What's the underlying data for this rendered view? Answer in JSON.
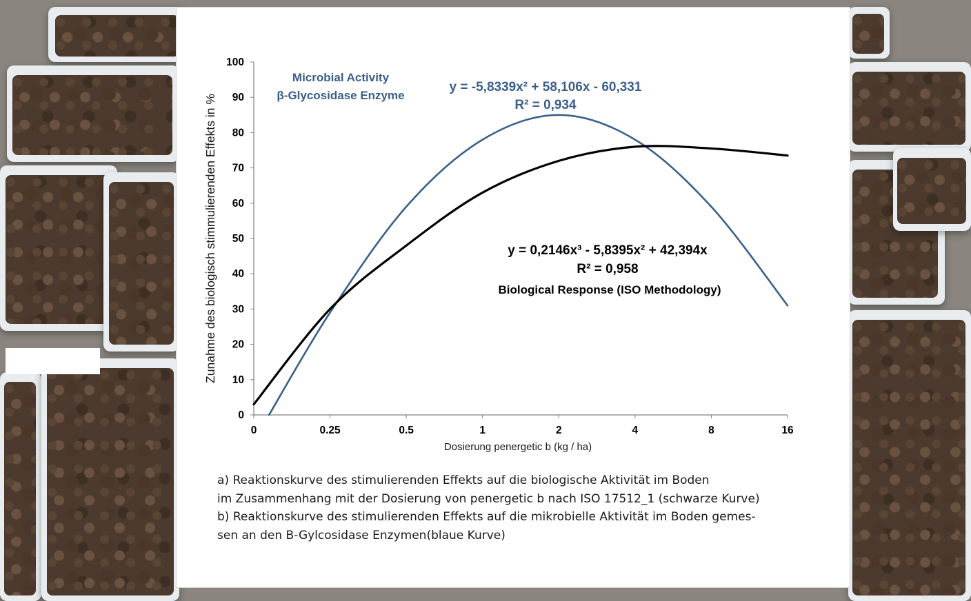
{
  "chart_data": {
    "type": "line",
    "xlabel": "Dosierung penergetic b (kg / ha)",
    "ylabel": "Zunahme des biologisch stimmulierenden Effekts  in %",
    "x_ticks": [
      "0",
      "0.25",
      "0.5",
      "1",
      "2",
      "4",
      "8",
      "16"
    ],
    "y_ticks": [
      "0",
      "10",
      "20",
      "30",
      "40",
      "50",
      "60",
      "70",
      "80",
      "90",
      "100"
    ],
    "ylim": [
      0,
      100
    ],
    "grid": false,
    "series": [
      {
        "name": "Microbial Activity β-Glycosidase Enzyme",
        "name_line1": "Microbial Activity",
        "name_line2": "β-Glycosidase Enzyme",
        "equation": "y = -5,8339x² + 58,106x  - 60,331",
        "r2": "R² = 0,934",
        "color": "#3a5f8a",
        "x": [
          "0.05",
          "0.25",
          "0.5",
          "1",
          "2",
          "4",
          "8",
          "16"
        ],
        "values": [
          0,
          29,
          59,
          78,
          85,
          78,
          59,
          31
        ]
      },
      {
        "name": "Biological Response (ISO Methodology)",
        "equation": "y = 0,2146x³  - 5,8395x² + 42,394x",
        "r2": "R² = 0,958",
        "color": "#000000",
        "x": [
          "0",
          "0.25",
          "0.5",
          "1",
          "2",
          "4",
          "8",
          "16"
        ],
        "values": [
          3,
          30,
          48,
          63,
          72,
          76,
          75.5,
          73.5
        ]
      }
    ]
  },
  "caption": {
    "line1": "a) Reaktionskurve des stimulierenden Effekts auf die biologische Aktivität im Boden",
    "line2": "im Zusammenhang mit der Dosierung von penergetic b nach ISO 17512_1 (schwarze Kurve)",
    "line3": "b) Reaktionskurve des stimulierenden Effekts auf die mikrobielle Aktivität im Boden gemes-",
    "line4": "sen an den B-Gylcosidase Enzymen(blaue Kurve)"
  }
}
